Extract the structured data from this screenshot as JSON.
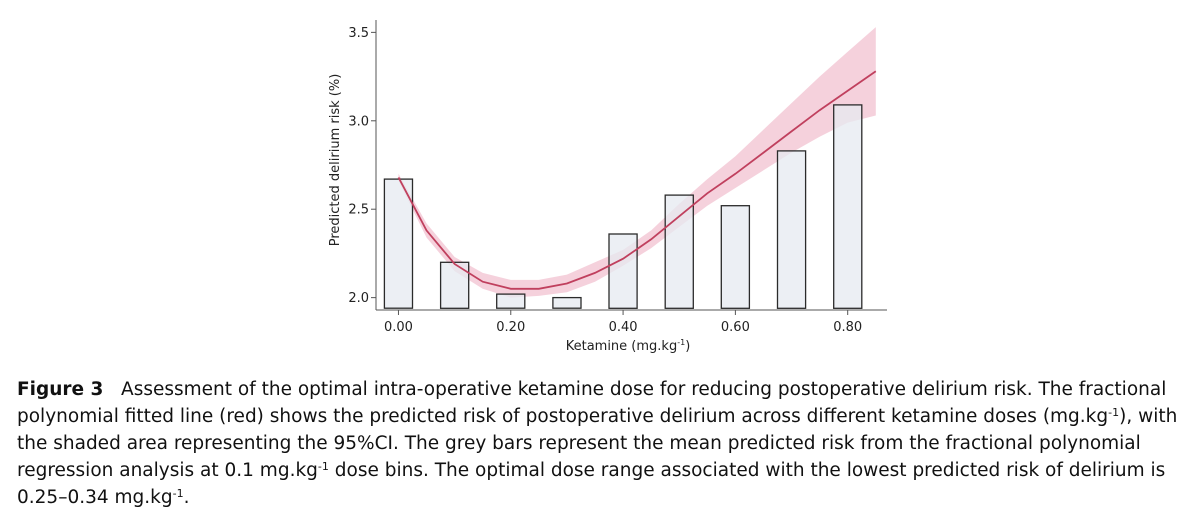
{
  "chart_data": {
    "type": "bar",
    "title": "",
    "xlabel_text": "Ketamine (mg.kg",
    "xlabel_sup": "-1",
    "xlabel_close": ")",
    "ylabel": "Predicted delirium risk (%)",
    "x_ticks": [
      0.0,
      0.2,
      0.4,
      0.6,
      0.8
    ],
    "x_tick_labels": [
      "0.00",
      "0.20",
      "0.40",
      "0.60",
      "0.80"
    ],
    "y_ticks": [
      2.0,
      2.5,
      3.0,
      3.5
    ],
    "y_tick_labels": [
      "2.0",
      "2.5",
      "3.0",
      "3.5"
    ],
    "xlim": [
      -0.04,
      0.87
    ],
    "ylim": [
      1.93,
      3.57
    ],
    "bar_base": 1.94,
    "bar_width": 0.05,
    "bars": [
      {
        "x": 0.0,
        "value": 2.67
      },
      {
        "x": 0.1,
        "value": 2.2
      },
      {
        "x": 0.2,
        "value": 2.02
      },
      {
        "x": 0.3,
        "value": 2.0
      },
      {
        "x": 0.4,
        "value": 2.36
      },
      {
        "x": 0.5,
        "value": 2.58
      },
      {
        "x": 0.6,
        "value": 2.52
      },
      {
        "x": 0.7,
        "value": 2.83
      },
      {
        "x": 0.8,
        "value": 3.09
      }
    ],
    "fit_line": {
      "name": "Fractional polynomial fit",
      "x": [
        0.0,
        0.05,
        0.1,
        0.15,
        0.2,
        0.25,
        0.3,
        0.35,
        0.4,
        0.45,
        0.5,
        0.55,
        0.6,
        0.65,
        0.7,
        0.75,
        0.8,
        0.85
      ],
      "y": [
        2.68,
        2.38,
        2.19,
        2.09,
        2.05,
        2.05,
        2.08,
        2.14,
        2.22,
        2.33,
        2.46,
        2.59,
        2.7,
        2.82,
        2.94,
        3.06,
        3.17,
        3.28
      ]
    },
    "ci_band": {
      "name": "95%CI",
      "x": [
        0.0,
        0.05,
        0.1,
        0.15,
        0.2,
        0.25,
        0.3,
        0.35,
        0.4,
        0.45,
        0.5,
        0.55,
        0.6,
        0.65,
        0.7,
        0.75,
        0.8,
        0.85
      ],
      "lower": [
        2.66,
        2.34,
        2.15,
        2.05,
        2.0,
        2.01,
        2.03,
        2.09,
        2.18,
        2.28,
        2.4,
        2.52,
        2.62,
        2.72,
        2.82,
        2.91,
        2.99,
        3.03
      ],
      "upper": [
        2.7,
        2.42,
        2.23,
        2.14,
        2.1,
        2.1,
        2.13,
        2.2,
        2.27,
        2.38,
        2.53,
        2.67,
        2.8,
        2.95,
        3.1,
        3.25,
        3.39,
        3.53
      ]
    },
    "colors": {
      "bar_fill": "#e6e9f0",
      "bar_stroke": "#2b2b2b",
      "line": "#c0405e",
      "band": "#f2c6d3",
      "axis": "#555555"
    }
  },
  "caption": {
    "label": "Figure 3",
    "t1": "Assessment of the optimal intra-operative ketamine dose for reducing postoperative delirium risk. The fractional polynomial fitted line (red) shows the predicted risk of postoperative delirium across different ketamine doses (mg.kg",
    "s1": "-1",
    "t2": "), with the shaded area representing the 95%CI. The grey bars represent the mean predicted risk from the fractional polynomial regression analysis at 0.1  mg.kg",
    "s2": "-1",
    "t3": " dose bins. The optimal dose range associated with the lowest predicted risk of delirium is 0.25–0.34  mg.kg",
    "s3": "-1",
    "t4": "."
  }
}
